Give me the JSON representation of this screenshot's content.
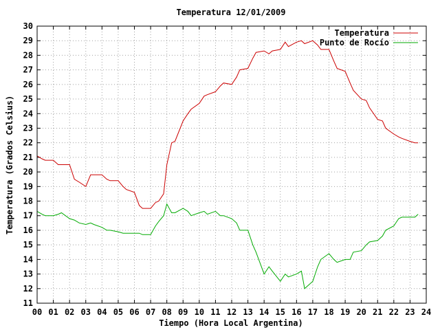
{
  "chart_data": {
    "type": "line",
    "title": "Temperatura 12/01/2009",
    "xlabel": "Tiempo (Hora Local Argentina)",
    "ylabel": "Temperatura (Grados Celsius)",
    "xlim": [
      0,
      24
    ],
    "ylim": [
      11,
      30
    ],
    "x_ticks": [
      "00",
      "01",
      "02",
      "03",
      "04",
      "05",
      "06",
      "07",
      "08",
      "09",
      "10",
      "11",
      "12",
      "13",
      "14",
      "15",
      "16",
      "17",
      "18",
      "19",
      "20",
      "21",
      "22",
      "23",
      "24"
    ],
    "y_ticks": [
      11,
      12,
      13,
      14,
      15,
      16,
      17,
      18,
      19,
      20,
      21,
      22,
      23,
      24,
      25,
      26,
      27,
      28,
      29,
      30
    ],
    "grid": true,
    "legend_position": "top-right",
    "series": [
      {
        "name": "Temperatura",
        "color": "#cc0000",
        "x": [
          0,
          0.3,
          0.5,
          1.0,
          1.3,
          1.5,
          2.0,
          2.3,
          2.6,
          3.0,
          3.3,
          3.5,
          4.0,
          4.3,
          4.5,
          5.0,
          5.3,
          5.5,
          6.0,
          6.3,
          6.5,
          7.0,
          7.3,
          7.5,
          7.8,
          8.0,
          8.3,
          8.5,
          9.0,
          9.3,
          9.5,
          10.0,
          10.3,
          10.5,
          11.0,
          11.3,
          11.5,
          12.0,
          12.3,
          12.5,
          13.0,
          13.3,
          13.5,
          14.0,
          14.3,
          14.5,
          15.0,
          15.3,
          15.5,
          16.0,
          16.3,
          16.5,
          17.0,
          17.3,
          17.5,
          18.0,
          18.3,
          18.5,
          19.0,
          19.3,
          19.5,
          20.0,
          20.3,
          20.5,
          21.0,
          21.3,
          21.5,
          22.0,
          22.3,
          22.5,
          23.0,
          23.3,
          23.5
        ],
        "values": [
          21.1,
          20.9,
          20.8,
          20.8,
          20.5,
          20.5,
          20.5,
          19.5,
          19.3,
          19.0,
          19.8,
          19.8,
          19.8,
          19.5,
          19.4,
          19.4,
          19.0,
          18.8,
          18.6,
          17.7,
          17.5,
          17.5,
          17.9,
          18.0,
          18.5,
          20.5,
          22.0,
          22.1,
          23.5,
          24.0,
          24.3,
          24.7,
          25.2,
          25.3,
          25.5,
          25.9,
          26.1,
          26.0,
          26.5,
          27.0,
          27.1,
          27.8,
          28.2,
          28.3,
          28.1,
          28.3,
          28.4,
          28.9,
          28.6,
          28.9,
          29.0,
          28.8,
          29.0,
          28.7,
          28.4,
          28.4,
          27.6,
          27.1,
          26.9,
          26.1,
          25.6,
          25.0,
          24.9,
          24.4,
          23.6,
          23.5,
          23.0,
          22.6,
          22.4,
          22.3,
          22.1,
          22.0,
          22.0
        ]
      },
      {
        "name": "Punto de Rocío",
        "color": "#00aa00",
        "x": [
          0,
          0.3,
          0.5,
          1.0,
          1.3,
          1.5,
          2.0,
          2.3,
          2.6,
          3.0,
          3.3,
          3.5,
          4.0,
          4.3,
          4.5,
          5.0,
          5.3,
          5.5,
          6.0,
          6.3,
          6.5,
          7.0,
          7.3,
          7.5,
          7.8,
          8.0,
          8.3,
          8.5,
          9.0,
          9.3,
          9.5,
          10.0,
          10.3,
          10.5,
          11.0,
          11.3,
          11.5,
          12.0,
          12.3,
          12.5,
          13.0,
          13.3,
          13.5,
          14.0,
          14.3,
          14.5,
          15.0,
          15.3,
          15.5,
          16.0,
          16.3,
          16.5,
          17.0,
          17.3,
          17.5,
          18.0,
          18.3,
          18.5,
          19.0,
          19.3,
          19.5,
          20.0,
          20.3,
          20.5,
          21.0,
          21.3,
          21.5,
          22.0,
          22.3,
          22.5,
          23.0,
          23.3,
          23.5
        ],
        "values": [
          17.3,
          17.1,
          17.0,
          17.0,
          17.1,
          17.2,
          16.8,
          16.7,
          16.5,
          16.4,
          16.5,
          16.4,
          16.2,
          16.0,
          16.0,
          15.9,
          15.8,
          15.8,
          15.8,
          15.8,
          15.7,
          15.7,
          16.3,
          16.6,
          17.0,
          17.8,
          17.2,
          17.2,
          17.5,
          17.3,
          17.0,
          17.2,
          17.3,
          17.1,
          17.3,
          17.0,
          17.0,
          16.8,
          16.5,
          16.0,
          16.0,
          15.0,
          14.5,
          13.0,
          13.5,
          13.2,
          12.5,
          13.0,
          12.8,
          13.0,
          13.2,
          12.0,
          12.5,
          13.5,
          14.0,
          14.4,
          14.0,
          13.8,
          14.0,
          14.0,
          14.5,
          14.6,
          15.0,
          15.2,
          15.3,
          15.6,
          16.0,
          16.3,
          16.8,
          16.9,
          16.9,
          16.9,
          17.1
        ]
      }
    ]
  }
}
